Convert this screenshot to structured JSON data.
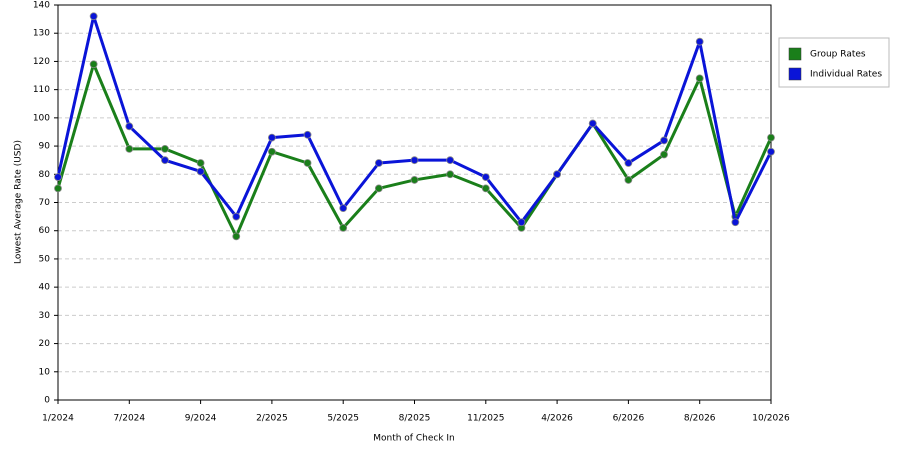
{
  "chart_data": {
    "type": "line",
    "x_label": "Month of Check In",
    "y_label": "Lowest Average Rate (USD)",
    "categories": [
      "1/2024",
      null,
      "7/2024",
      null,
      "9/2024",
      null,
      "2/2025",
      null,
      "5/2025",
      null,
      "8/2025",
      null,
      "11/2025",
      null,
      "4/2026",
      null,
      "6/2026",
      null,
      "8/2026",
      null,
      "10/2026"
    ],
    "series": [
      {
        "name": "Group Rates",
        "color": "#1a7f1a",
        "values": [
          75,
          119,
          89,
          89,
          84,
          58,
          88,
          84,
          61,
          75,
          78,
          80,
          75,
          61,
          80,
          98,
          78,
          87,
          114,
          65,
          93
        ]
      },
      {
        "name": "Individual Rates",
        "color": "#0a14d8",
        "values": [
          79,
          136,
          97,
          85,
          81,
          65,
          93,
          94,
          68,
          84,
          85,
          85,
          79,
          63,
          80,
          98,
          84,
          92,
          127,
          63,
          88
        ]
      }
    ],
    "ylim": [
      0,
      140
    ],
    "yticks": [
      0,
      10,
      20,
      30,
      40,
      50,
      60,
      70,
      80,
      90,
      100,
      110,
      120,
      130,
      140
    ],
    "grid": true,
    "legend": "right"
  }
}
